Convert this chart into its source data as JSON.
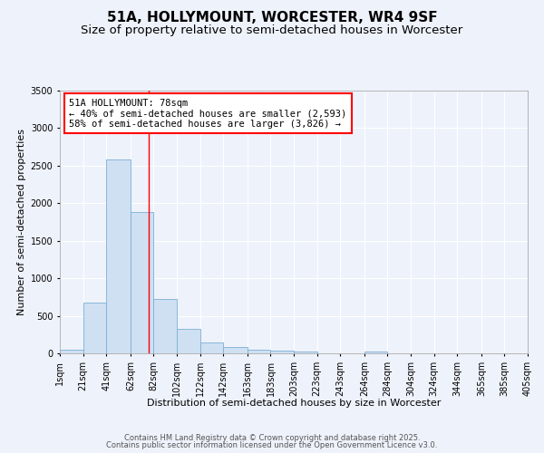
{
  "title_line1": "51A, HOLLYMOUNT, WORCESTER, WR4 9SF",
  "title_line2": "Size of property relative to semi-detached houses in Worcester",
  "xlabel": "Distribution of semi-detached houses by size in Worcester",
  "ylabel": "Number of semi-detached properties",
  "annotation_line1": "51A HOLLYMOUNT: 78sqm",
  "annotation_line2": "← 40% of semi-detached houses are smaller (2,593)",
  "annotation_line3": "58% of semi-detached houses are larger (3,826) →",
  "bar_left_edges": [
    1,
    21,
    41,
    62,
    82,
    102,
    122,
    142,
    163,
    183,
    203,
    223,
    243,
    264,
    284,
    304,
    324,
    344,
    365,
    385
  ],
  "bar_widths": [
    20,
    20,
    21,
    20,
    20,
    20,
    20,
    21,
    20,
    20,
    20,
    20,
    21,
    20,
    20,
    20,
    20,
    21,
    20,
    20
  ],
  "bar_heights": [
    50,
    670,
    2580,
    1880,
    720,
    330,
    145,
    90,
    50,
    35,
    25,
    0,
    0,
    25,
    0,
    0,
    0,
    0,
    0,
    0
  ],
  "bar_color": "#cfe0f3",
  "bar_edge_color": "#7bafd4",
  "red_line_x": 78,
  "ylim": [
    0,
    3500
  ],
  "yticks": [
    0,
    500,
    1000,
    1500,
    2000,
    2500,
    3000,
    3500
  ],
  "x_tick_labels": [
    "1sqm",
    "21sqm",
    "41sqm",
    "62sqm",
    "82sqm",
    "102sqm",
    "122sqm",
    "142sqm",
    "163sqm",
    "183sqm",
    "203sqm",
    "223sqm",
    "243sqm",
    "264sqm",
    "284sqm",
    "304sqm",
    "324sqm",
    "344sqm",
    "365sqm",
    "385sqm",
    "405sqm"
  ],
  "x_tick_positions": [
    1,
    21,
    41,
    62,
    82,
    102,
    122,
    142,
    163,
    183,
    203,
    223,
    243,
    264,
    284,
    304,
    324,
    344,
    365,
    385,
    405
  ],
  "background_color": "#eef2fb",
  "grid_color": "#ffffff",
  "footer_line1": "Contains HM Land Registry data © Crown copyright and database right 2025.",
  "footer_line2": "Contains public sector information licensed under the Open Government Licence v3.0.",
  "title_fontsize": 11,
  "subtitle_fontsize": 9.5,
  "axis_label_fontsize": 8,
  "tick_fontsize": 7,
  "annotation_fontsize": 7.5,
  "footer_fontsize": 6
}
